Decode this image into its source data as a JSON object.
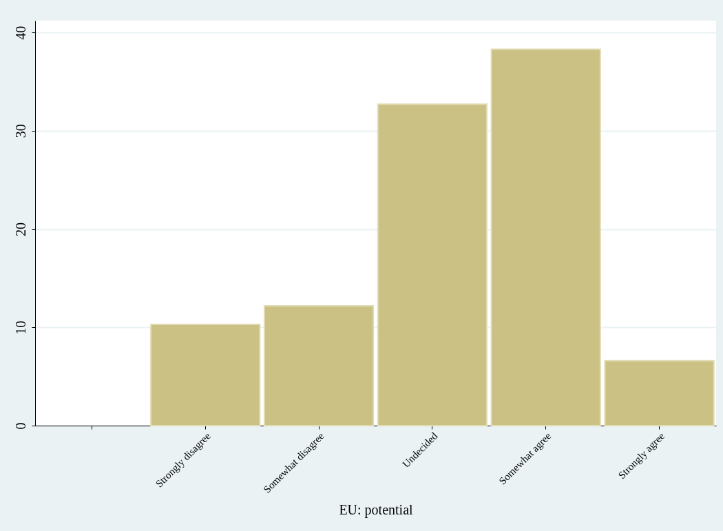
{
  "chart_data": {
    "type": "bar",
    "xlabel": "EU: potential",
    "categories": [
      null,
      "Strongly disagree",
      "Somewhat disagree",
      "Undecided",
      "Somewhat agree",
      "Strongly agree"
    ],
    "values": [
      null,
      10.3,
      12.2,
      32.7,
      38.3,
      6.6
    ],
    "color": "#cbc185",
    "ylim": [
      0,
      41.2
    ],
    "yticks": [
      0,
      10,
      20,
      30,
      40
    ],
    "grid": "y"
  }
}
